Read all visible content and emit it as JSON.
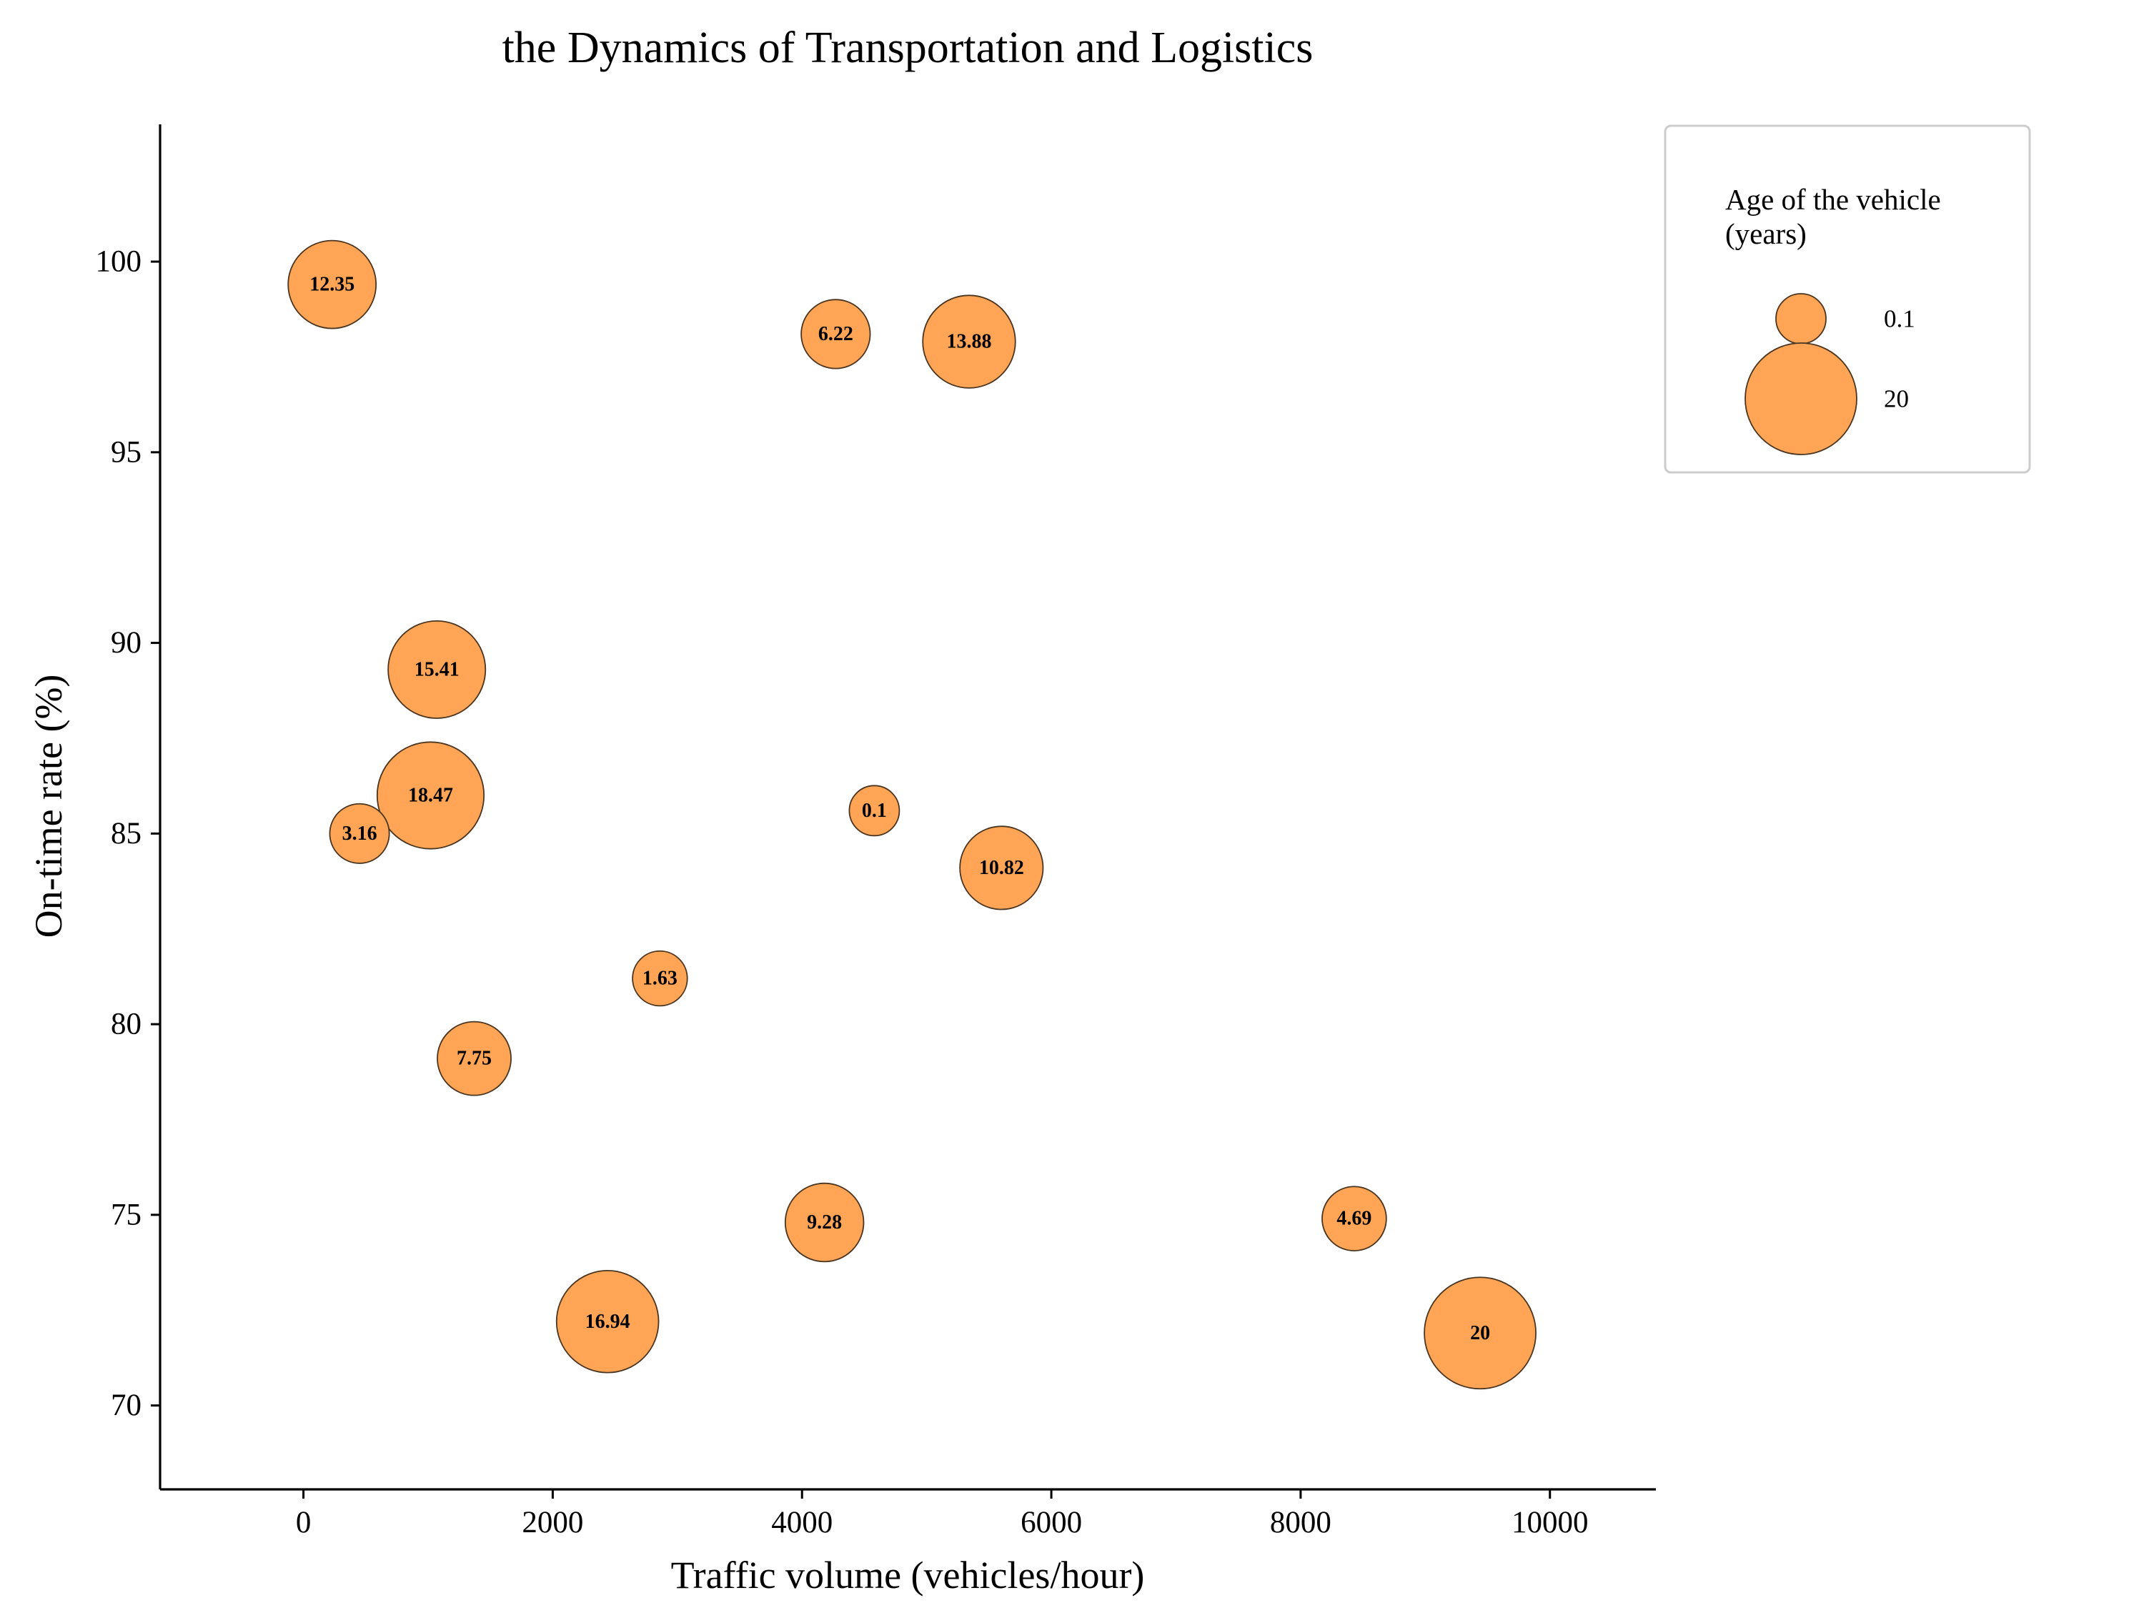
{
  "chart_data": {
    "type": "scatter",
    "title": "the Dynamics of Transportation and Logistics",
    "xlabel": "Traffic volume (vehicles/hour)",
    "ylabel": "On-time rate (%)",
    "xlim": [
      -1150,
      10850
    ],
    "ylim": [
      67.8,
      103.6
    ],
    "xticks": [
      0,
      2000,
      4000,
      6000,
      8000,
      10000
    ],
    "yticks": [
      70,
      75,
      80,
      85,
      90,
      95,
      100
    ],
    "grid": false,
    "bubble_color": "#ffa555",
    "edge_color": "#4a3520",
    "points": [
      {
        "x": 230,
        "y": 99.4,
        "size": 12.35,
        "label": "12.35"
      },
      {
        "x": 4270,
        "y": 98.1,
        "size": 6.22,
        "label": "6.22"
      },
      {
        "x": 5340,
        "y": 97.9,
        "size": 13.88,
        "label": "13.88"
      },
      {
        "x": 1070,
        "y": 89.3,
        "size": 15.41,
        "label": "15.41"
      },
      {
        "x": 1020,
        "y": 86.0,
        "size": 18.47,
        "label": "18.47"
      },
      {
        "x": 450,
        "y": 85.0,
        "size": 3.16,
        "label": "3.16"
      },
      {
        "x": 4580,
        "y": 85.6,
        "size": 0.1,
        "label": "0.1"
      },
      {
        "x": 5600,
        "y": 84.1,
        "size": 10.82,
        "label": "10.82"
      },
      {
        "x": 2860,
        "y": 81.2,
        "size": 1.63,
        "label": "1.63"
      },
      {
        "x": 1370,
        "y": 79.1,
        "size": 7.75,
        "label": "7.75"
      },
      {
        "x": 4180,
        "y": 74.8,
        "size": 9.28,
        "label": "9.28"
      },
      {
        "x": 8430,
        "y": 74.9,
        "size": 4.69,
        "label": "4.69"
      },
      {
        "x": 2440,
        "y": 72.2,
        "size": 16.94,
        "label": "16.94"
      },
      {
        "x": 9440,
        "y": 71.9,
        "size": 20,
        "label": "20"
      }
    ],
    "legend": {
      "title_line1": "Age of the vehicle",
      "title_line2": "(years)",
      "placement": "upper right, outside plot",
      "entries": [
        {
          "size": 0.1,
          "label": "0.1"
        },
        {
          "size": 20,
          "label": "20"
        }
      ]
    }
  }
}
